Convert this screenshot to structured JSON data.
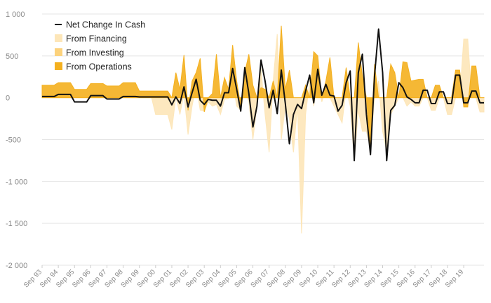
{
  "chart_data": {
    "type": "area",
    "x_labels": [
      "Sep 93",
      "Sep 94",
      "Sep 95",
      "Sep 96",
      "Sep 97",
      "Sep 98",
      "Sep 99",
      "Sep 00",
      "Sep 01",
      "Sep 02",
      "Sep 03",
      "Sep 04",
      "Sep 05",
      "Sep 06",
      "Sep 07",
      "Sep 08",
      "Sep 09",
      "Sep 10",
      "Sep 11",
      "Sep 12",
      "Sep 13",
      "Sep 14",
      "Sep 15",
      "Sep 16",
      "Sep 17",
      "Sep 18",
      "Sep 19"
    ],
    "points_per_year": 4,
    "ylim": [
      -2000,
      1000
    ],
    "y_ticks": [
      1000,
      500,
      0,
      -500,
      -1000,
      -1500,
      -2000
    ],
    "y_tick_labels": [
      "1 000",
      "500",
      "0",
      "-500",
      "-1 000",
      "-1 500",
      "-2 000"
    ],
    "grid": true,
    "legend_position": "top-left",
    "series": [
      {
        "name": "Net Change In Cash",
        "style": "line",
        "color": "#111111",
        "values": [
          15,
          15,
          15,
          15,
          40,
          40,
          40,
          40,
          -50,
          -50,
          -50,
          -50,
          25,
          25,
          25,
          25,
          -15,
          -15,
          -15,
          -15,
          15,
          15,
          15,
          15,
          10,
          10,
          10,
          10,
          10,
          10,
          10,
          10,
          -85,
          10,
          -70,
          130,
          -110,
          60,
          220,
          -30,
          -80,
          -20,
          -30,
          -30,
          -100,
          60,
          60,
          350,
          100,
          -160,
          360,
          50,
          -350,
          -100,
          450,
          200,
          -120,
          90,
          -190,
          330,
          -70,
          -550,
          -200,
          -80,
          -130,
          80,
          270,
          -60,
          340,
          30,
          160,
          30,
          20,
          -160,
          -90,
          180,
          320,
          -750,
          300,
          520,
          -200,
          -680,
          260,
          820,
          300,
          -750,
          -150,
          -90,
          180,
          120,
          10,
          -20,
          -60,
          -60,
          90,
          90,
          -70,
          -70,
          70,
          70,
          -70,
          -70,
          270,
          270,
          -60,
          -60,
          80,
          80,
          -60,
          -60
        ]
      },
      {
        "name": "From Financing",
        "style": "area",
        "color": "#fde6b8",
        "values": [
          0,
          0,
          0,
          0,
          0,
          0,
          0,
          0,
          0,
          0,
          0,
          0,
          0,
          0,
          0,
          0,
          0,
          0,
          0,
          0,
          0,
          0,
          0,
          0,
          0,
          0,
          0,
          0,
          -200,
          -200,
          -200,
          -200,
          -380,
          10,
          -200,
          50,
          -440,
          -100,
          150,
          -150,
          -160,
          -50,
          -100,
          -80,
          -200,
          -20,
          -10,
          200,
          -100,
          -150,
          100,
          -50,
          -500,
          -100,
          350,
          -200,
          -650,
          200,
          760,
          -500,
          -100,
          -250,
          -650,
          -100,
          -1620,
          -200,
          200,
          -100,
          200,
          -50,
          100,
          0,
          -100,
          -200,
          -300,
          100,
          -100,
          -750,
          -150,
          -400,
          -400,
          -600,
          0,
          200,
          -400,
          -650,
          -200,
          -100,
          0,
          0,
          -100,
          -50,
          -100,
          -100,
          0,
          0,
          -150,
          -150,
          0,
          0,
          -200,
          -200,
          0,
          0,
          700,
          700,
          0,
          0,
          -170,
          -170
        ]
      },
      {
        "name": "From Investing",
        "style": "area",
        "color": "#fcd27c",
        "values": [
          0,
          0,
          0,
          0,
          0,
          0,
          0,
          0,
          0,
          0,
          0,
          0,
          0,
          0,
          0,
          0,
          0,
          0,
          0,
          0,
          0,
          0,
          0,
          0,
          0,
          0,
          0,
          0,
          0,
          0,
          0,
          0,
          0,
          0,
          0,
          0,
          0,
          0,
          0,
          0,
          0,
          0,
          0,
          0,
          0,
          0,
          0,
          0,
          0,
          0,
          0,
          0,
          0,
          0,
          0,
          0,
          0,
          0,
          0,
          0,
          0,
          0,
          0,
          0,
          0,
          0,
          0,
          0,
          0,
          0,
          0,
          0,
          0,
          0,
          0,
          0,
          0,
          0,
          0,
          0,
          0,
          0,
          0,
          0,
          0,
          0,
          0,
          0,
          0,
          0,
          0,
          0,
          0,
          0,
          0,
          0,
          0,
          0,
          0,
          0,
          0,
          0,
          0,
          0,
          0,
          0,
          0,
          0
        ]
      },
      {
        "name": "From Operations",
        "style": "area",
        "color": "#f4b01f",
        "values": [
          150,
          150,
          150,
          150,
          180,
          180,
          180,
          180,
          100,
          100,
          100,
          100,
          170,
          170,
          170,
          170,
          140,
          140,
          140,
          140,
          180,
          180,
          180,
          180,
          80,
          80,
          80,
          80,
          80,
          80,
          80,
          80,
          0,
          300,
          100,
          510,
          -150,
          200,
          300,
          470,
          -170,
          0,
          50,
          520,
          0,
          240,
          100,
          630,
          200,
          -100,
          300,
          520,
          150,
          0,
          120,
          100,
          0,
          200,
          0,
          860,
          100,
          330,
          0,
          0,
          0,
          150,
          0,
          550,
          500,
          0,
          200,
          480,
          0,
          0,
          0,
          360,
          0,
          0,
          660,
          260,
          0,
          -650,
          400,
          0,
          0,
          0,
          400,
          300,
          0,
          430,
          420,
          200,
          210,
          220,
          220,
          0,
          0,
          150,
          150,
          0,
          0,
          0,
          330,
          330,
          -110,
          -110,
          380,
          380,
          0,
          0
        ]
      }
    ]
  },
  "colors": {
    "grid": "#e5e5e5",
    "tick_text": "#8a8a8a",
    "net_line": "#111111"
  }
}
